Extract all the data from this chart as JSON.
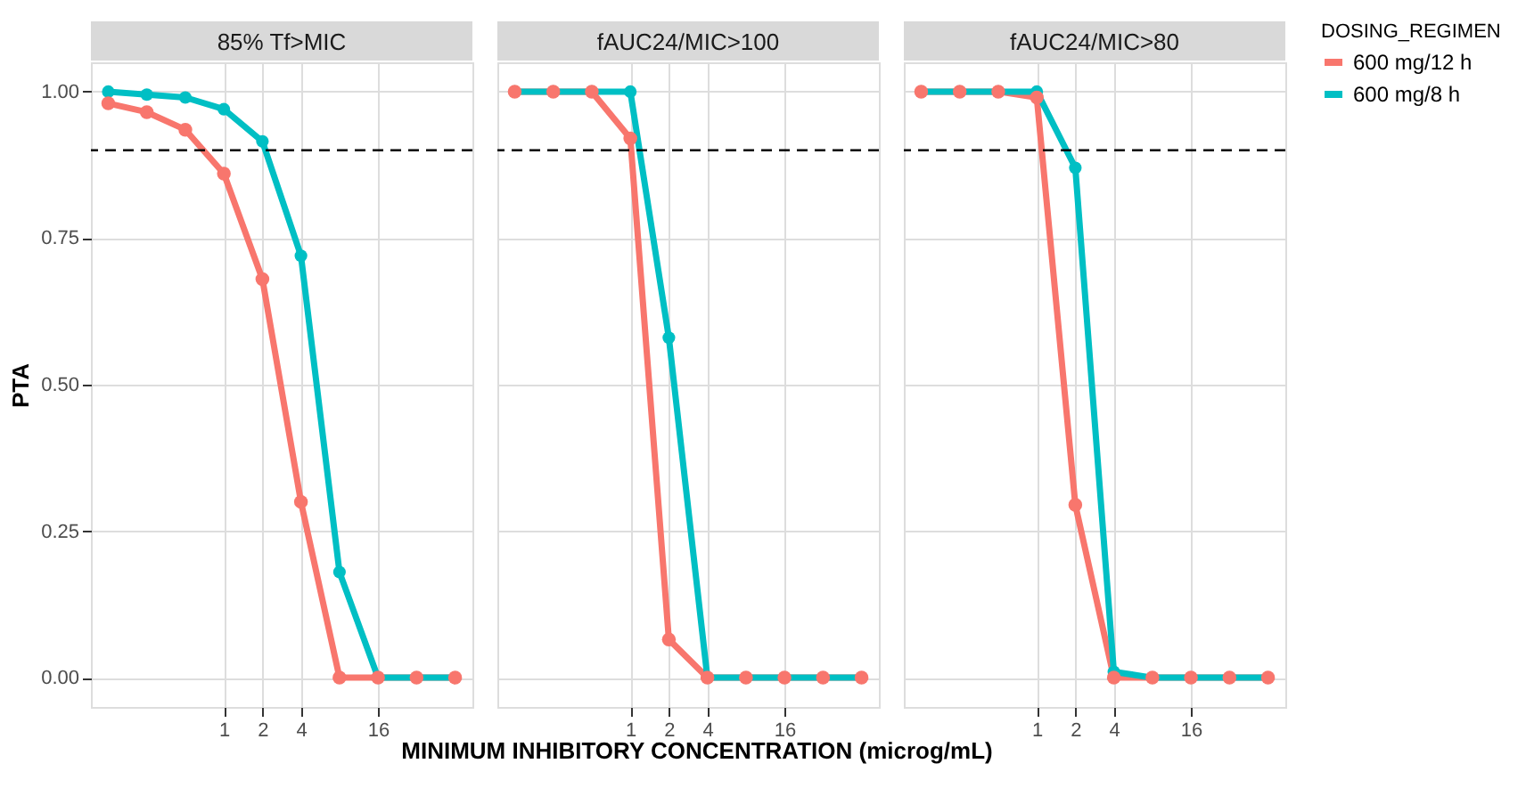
{
  "chart_data": [
    {
      "type": "line",
      "title": "85% Tf>MIC",
      "ylabel": "PTA",
      "legend_title": "DOSING_REGIMEN",
      "legend": "right",
      "x": [
        0.125,
        0.25,
        0.5,
        1,
        2,
        4,
        8,
        16,
        32,
        64
      ],
      "log": "x",
      "xlim": [
        0.0915,
        87.4
      ],
      "xticks": [
        1,
        2,
        4,
        16
      ],
      "ylim": [
        -0.05,
        1.05
      ],
      "yticks": [
        {
          "value": 0,
          "label": "0.00"
        },
        {
          "value": 0.25,
          "label": "0.25"
        },
        {
          "value": 0.5,
          "label": "0.50"
        },
        {
          "value": 0.75,
          "label": "0.75"
        },
        {
          "value": 1,
          "label": "1.00"
        }
      ],
      "grid": true,
      "marker": "circle",
      "line_style": "solid",
      "ref_lines": [
        {
          "axis": "y",
          "value": 0.9,
          "line_style": "dashed",
          "color": "#000000"
        }
      ],
      "series": [
        {
          "name": "600 mg/12 h",
          "color": "#f8766d",
          "values": [
            0.98,
            0.965,
            0.935,
            0.86,
            0.68,
            0.3,
            0,
            0,
            0,
            0
          ]
        },
        {
          "name": "600 mg/8 h",
          "color": "#00bfc4",
          "values": [
            1.0,
            0.995,
            0.99,
            0.97,
            0.915,
            0.72,
            0.18,
            0,
            0,
            0
          ]
        }
      ]
    },
    {
      "type": "line",
      "title": "fAUC24/MIC>100",
      "xlabel": "MINIMUM INHIBITORY CONCENTRATION (microg/mL)",
      "x": [
        0.125,
        0.25,
        0.5,
        1,
        2,
        4,
        8,
        16,
        32,
        64
      ],
      "log": "x",
      "xlim": [
        0.0915,
        87.4
      ],
      "xticks": [
        1,
        2,
        4,
        16
      ],
      "ylim": [
        -0.05,
        1.05
      ],
      "yticks": [
        0,
        0.25,
        0.5,
        0.75,
        1
      ],
      "tick_labels": "x",
      "grid": true,
      "marker": "circle",
      "line_style": "solid",
      "ref_lines": [
        {
          "axis": "y",
          "value": 0.9,
          "line_style": "dashed",
          "color": "#000000"
        }
      ],
      "series": [
        {
          "name": "600 mg/12 h",
          "color": "#f8766d",
          "values": [
            1,
            1,
            1,
            0.92,
            0.065,
            0,
            0,
            0,
            0,
            0
          ]
        },
        {
          "name": "600 mg/8 h",
          "color": "#00bfc4",
          "values": [
            1,
            1,
            1,
            1,
            0.58,
            0,
            0,
            0,
            0,
            0
          ]
        }
      ]
    },
    {
      "type": "line",
      "title": "fAUC24/MIC>80",
      "x": [
        0.125,
        0.25,
        0.5,
        1,
        2,
        4,
        8,
        16,
        32,
        64
      ],
      "log": "x",
      "xlim": [
        0.0915,
        87.4
      ],
      "xticks": [
        1,
        2,
        4,
        16
      ],
      "ylim": [
        -0.05,
        1.05
      ],
      "yticks": [
        0,
        0.25,
        0.5,
        0.75,
        1
      ],
      "tick_labels": "x",
      "grid": true,
      "marker": "circle",
      "line_style": "solid",
      "ref_lines": [
        {
          "axis": "y",
          "value": 0.9,
          "line_style": "dashed",
          "color": "#000000"
        }
      ],
      "series": [
        {
          "name": "600 mg/12 h",
          "color": "#f8766d",
          "values": [
            1,
            1,
            1,
            0.99,
            0.295,
            0,
            0,
            0,
            0,
            0
          ]
        },
        {
          "name": "600 mg/8 h",
          "color": "#00bfc4",
          "values": [
            1,
            1,
            1,
            1,
            0.87,
            0.01,
            0,
            0,
            0,
            0
          ]
        }
      ]
    }
  ]
}
